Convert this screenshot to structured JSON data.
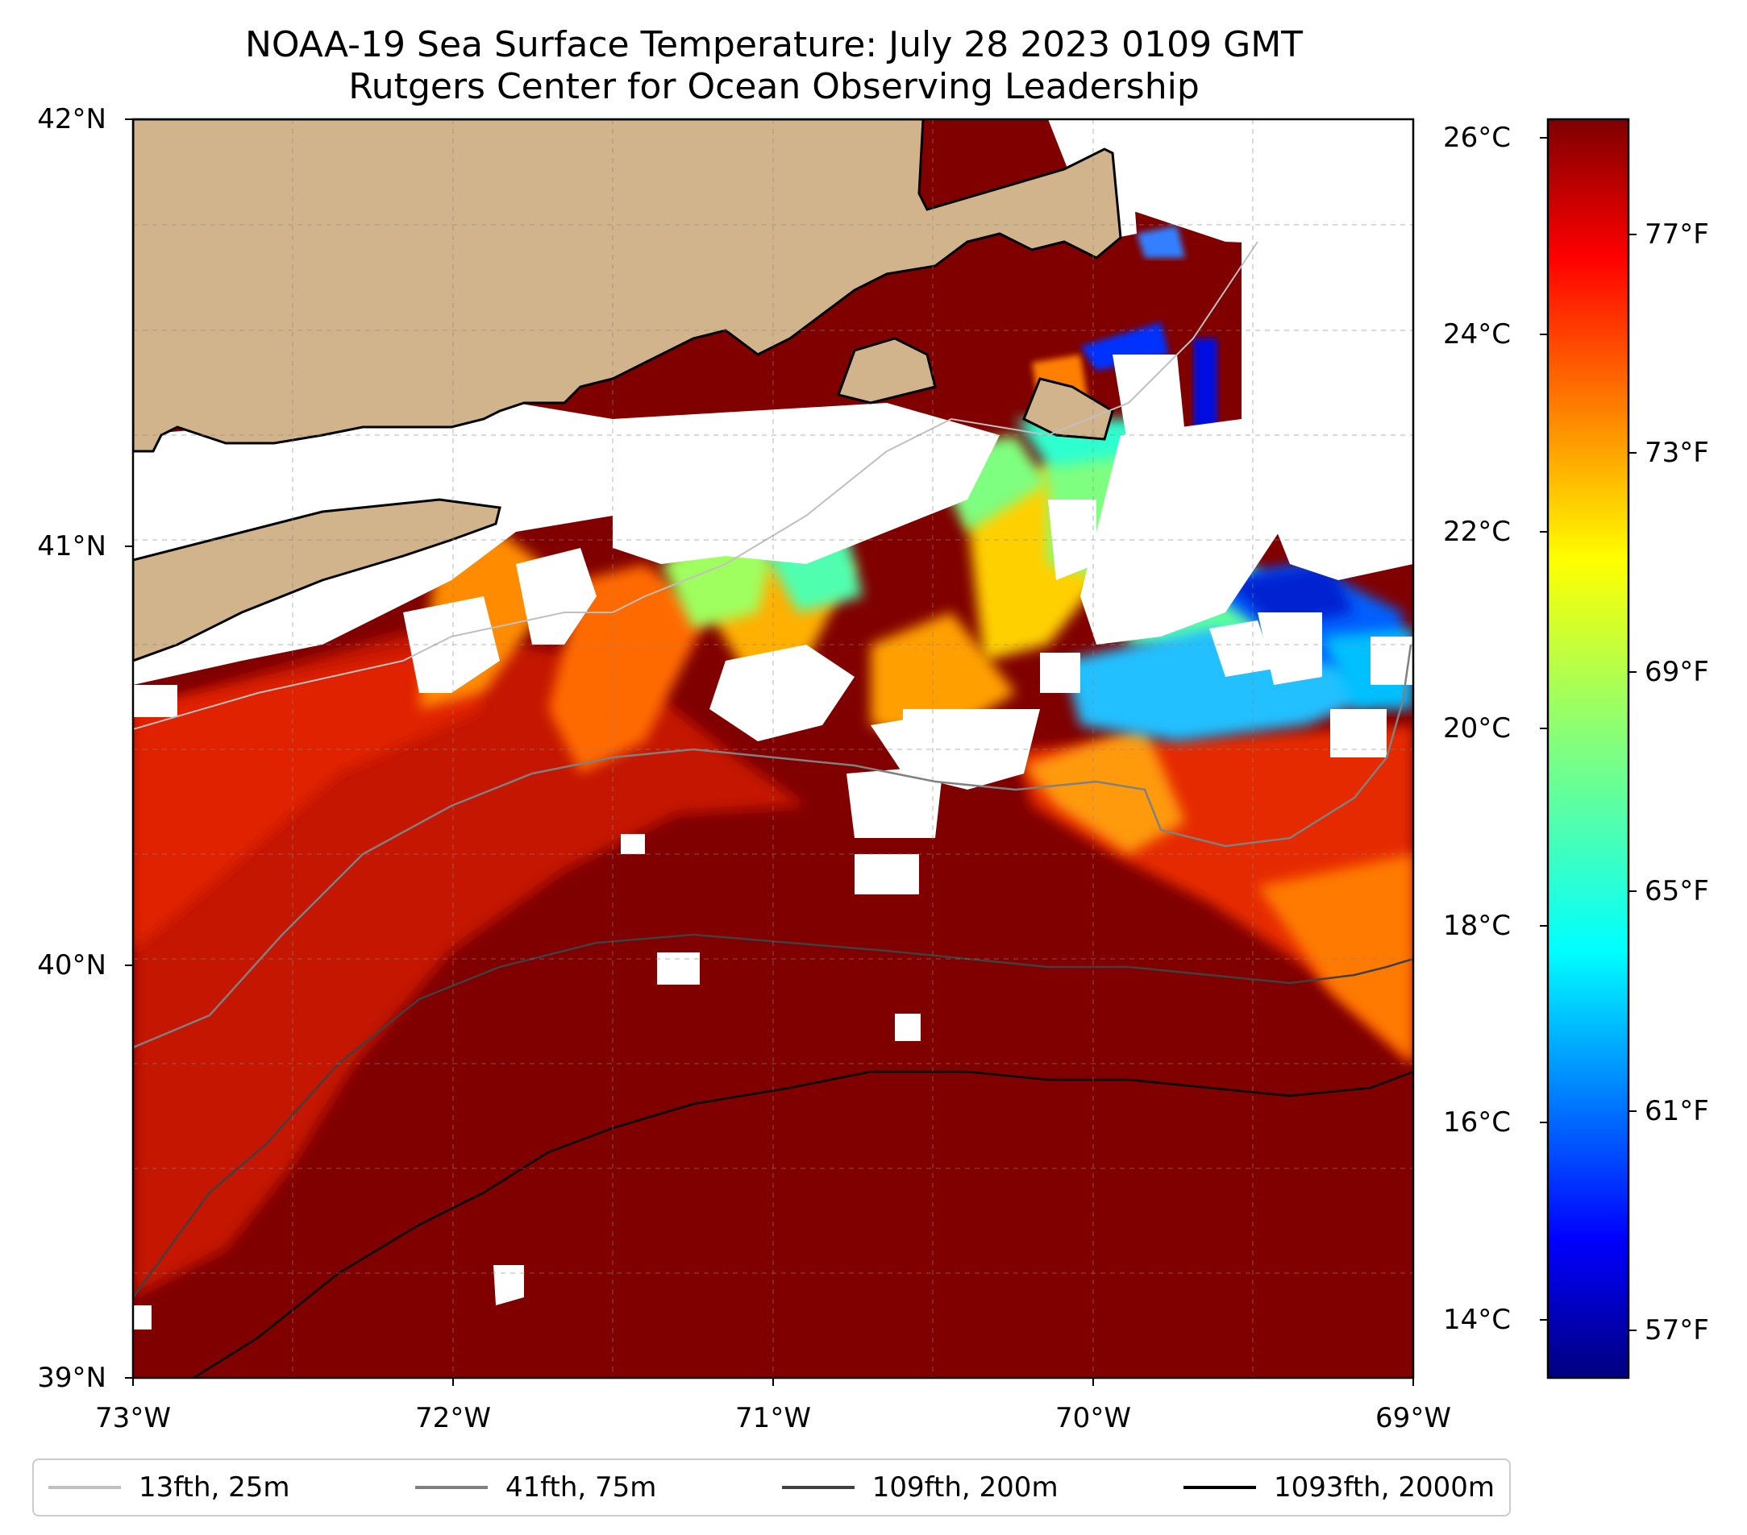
{
  "title": {
    "line1": "NOAA-19 Sea Surface Temperature: July 28 2023 0109 GMT",
    "line2": "Rutgers Center for Ocean Observing Leadership"
  },
  "map": {
    "lat_labels": [
      "42°N",
      "41°N",
      "40°N",
      "39°N"
    ],
    "lon_labels": [
      "73°W",
      "72°W",
      "71°W",
      "70°W",
      "69°W"
    ],
    "lat_range": [
      39,
      42
    ],
    "lon_range": [
      -73,
      -69
    ],
    "land_color": "#d2b48c",
    "ocean_hot_color": "#800000",
    "gridlines": "dashed"
  },
  "colorbar": {
    "celsius_labels": [
      "26°C",
      "24°C",
      "22°C",
      "20°C",
      "18°C",
      "16°C",
      "14°C"
    ],
    "fahrenheit_labels": [
      "77°F",
      "73°F",
      "69°F",
      "65°F",
      "61°F",
      "57°F"
    ],
    "celsius_range": [
      13.5,
      26.2
    ],
    "colormap": "jet"
  },
  "legend": {
    "items": [
      {
        "label": "13fth, 25m",
        "color": "#c0c0c0"
      },
      {
        "label": "41fth, 75m",
        "color": "#808080"
      },
      {
        "label": "109fth, 200m",
        "color": "#404040"
      },
      {
        "label": "1093fth, 2000m",
        "color": "#000000"
      }
    ]
  }
}
